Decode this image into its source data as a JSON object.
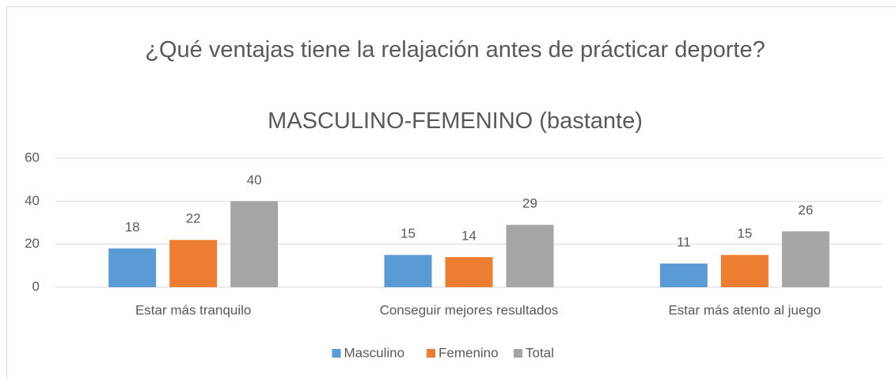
{
  "chart_data": {
    "type": "bar",
    "title": "¿Qué ventajas tiene la relajación antes de prácticar deporte?",
    "subtitle": "MASCULINO-FEMENINO (bastante)",
    "categories": [
      "Estar más tranquilo",
      "Conseguir mejores resultados",
      "Estar más atento al juego"
    ],
    "series": [
      {
        "name": "Masculino",
        "color": "#5b9bd5",
        "values": [
          18,
          15,
          11
        ]
      },
      {
        "name": "Femenino",
        "color": "#ed7d31",
        "values": [
          22,
          14,
          15
        ]
      },
      {
        "name": "Total",
        "color": "#a5a5a5",
        "values": [
          40,
          29,
          26
        ]
      }
    ],
    "ylim": [
      0,
      60
    ],
    "yticks": [
      0,
      20,
      40,
      60
    ],
    "grid": true,
    "legend": "bottom"
  }
}
